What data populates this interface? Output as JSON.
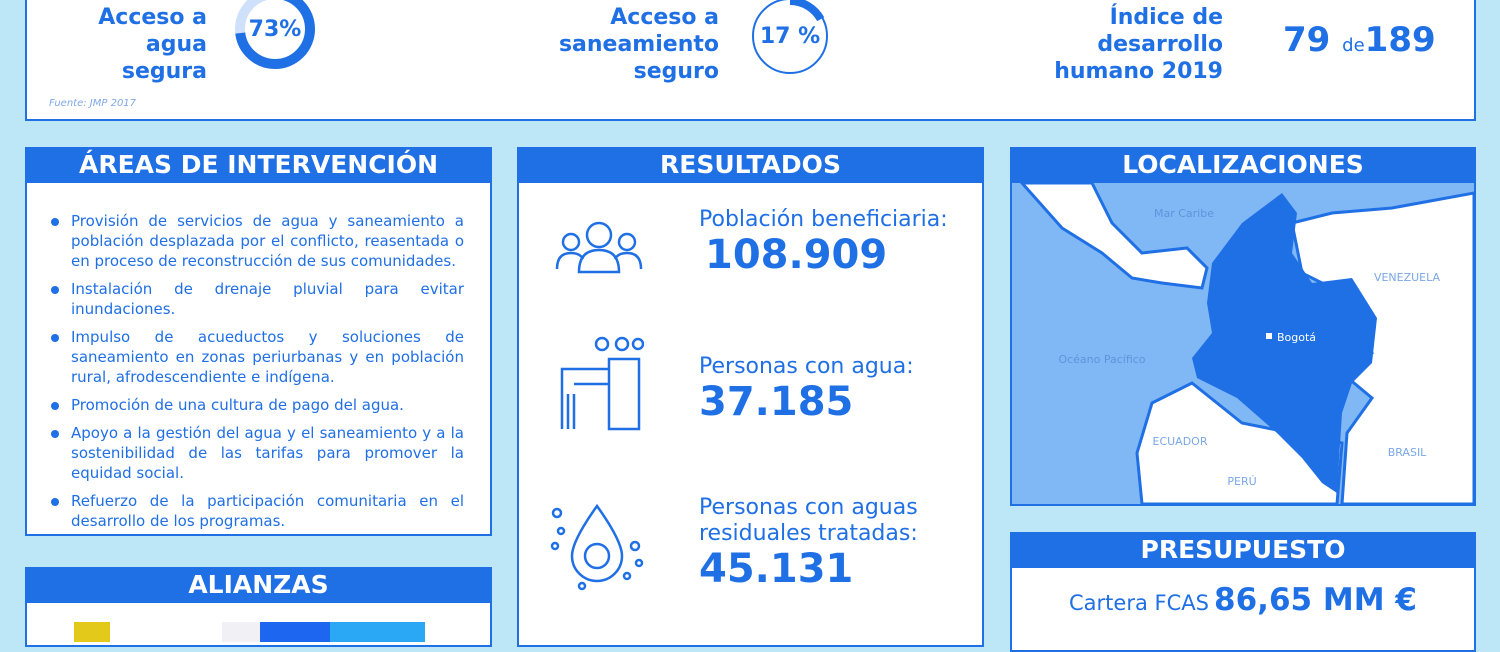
{
  "indicators": [
    {
      "label": "Acceso a agua segura",
      "value": "73%",
      "percent": 73
    },
    {
      "label": "Acceso a saneamiento seguro",
      "value": "17 %",
      "percent": 17
    },
    {
      "label": "Índice de desarrollo humano 2019",
      "rank": "79",
      "connector": "de",
      "total": "189"
    }
  ],
  "source": "Fuente: JMP 2017",
  "areas": {
    "title": "ÁREAS DE INTERVENCIÓN",
    "items": [
      "Provisión de servicios de agua y saneamiento a población desplazada por el conflicto, reasentada o en proceso de reconstrucción de sus comunidades.",
      "Instalación de drenaje pluvial para evitar inundaciones.",
      "Impulso de acueductos y soluciones de saneamiento en zonas periurbanas y en población rural, afrodescendiente e indígena.",
      "Promoción de una cultura de pago del agua.",
      "Apoyo a la gestión del agua y el saneamiento y a la sostenibilidad de las tarifas para promover la equidad social.",
      "Refuerzo de la participación comunitaria en el desarrollo de los programas."
    ]
  },
  "alianzas": {
    "title": "ALIANZAS"
  },
  "resultados": {
    "title": "RESULTADOS",
    "items": [
      {
        "label": "Población beneficiaria:",
        "value": "108.909",
        "icon": "people-icon"
      },
      {
        "label": "Personas con agua:",
        "value": "37.185",
        "icon": "faucet-icon"
      },
      {
        "label": "Personas con aguas residuales tratadas:",
        "value": "45.131",
        "icon": "water-recycle-icon"
      }
    ]
  },
  "localizaciones": {
    "title": "LOCALIZACIONES",
    "labels": {
      "sea": "Mar Caribe",
      "ocean": "Océano Pacífico",
      "capital": "Bogotá",
      "venezuela": "VENEZUELA",
      "ecuador": "ECUADOR",
      "peru": "PERÚ",
      "brasil": "BRASIL"
    }
  },
  "presupuesto": {
    "title": "PRESUPUESTO",
    "label": "Cartera FCAS",
    "value": "86,65 MM €"
  },
  "colors": {
    "primary": "#1f6fe5",
    "background": "#bde6f6",
    "sea": "#80b8f5"
  }
}
